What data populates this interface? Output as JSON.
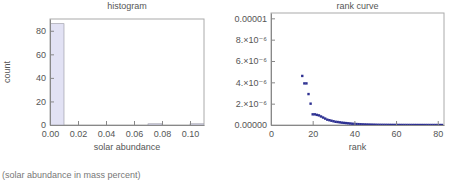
{
  "chart_data": [
    {
      "type": "histogram",
      "title": "histogram",
      "x_label": "solar abundance",
      "y_label": "count",
      "bins": [
        0,
        0.01,
        0.02,
        0.03,
        0.04,
        0.05,
        0.06,
        0.07,
        0.08,
        0.09,
        0.1,
        0.11
      ],
      "counts": [
        86,
        0,
        0,
        0,
        0,
        0,
        0,
        1,
        0,
        0,
        1
      ],
      "color": "#e2e2f4",
      "xlim": [
        0,
        0.11
      ],
      "ylim": [
        0,
        90
      ],
      "xticks": [
        {
          "value": 0,
          "label": "0.00"
        },
        {
          "value": 0.02,
          "label": "0.02"
        },
        {
          "value": 0.04,
          "label": "0.04"
        },
        {
          "value": 0.06,
          "label": "0.06"
        },
        {
          "value": 0.08,
          "label": "0.08"
        },
        {
          "value": 0.1,
          "label": "0.10"
        }
      ],
      "yticks": [
        0,
        20,
        40,
        60,
        80
      ]
    },
    {
      "type": "scatter",
      "title": "rank curve",
      "x_label": "rank",
      "x": [
        15,
        16,
        17,
        18,
        19,
        20,
        21,
        22,
        23,
        24,
        25,
        26,
        27,
        28,
        29,
        30,
        31,
        32,
        33,
        34,
        35,
        36,
        37,
        38,
        39,
        40,
        41,
        42,
        43,
        44,
        45,
        46,
        47,
        48,
        49,
        50,
        51,
        52,
        53,
        54,
        55,
        56,
        57,
        58,
        59,
        60,
        61,
        62,
        63,
        64,
        65,
        66,
        67,
        68,
        69,
        70,
        71,
        72,
        73,
        74,
        75,
        76,
        77,
        78,
        79,
        80,
        81,
        82
      ],
      "values": [
        4.6e-06,
        3.9e-06,
        3.9e-06,
        2.9e-06,
        2e-06,
        1e-06,
        1e-06,
        9.5e-07,
        9e-07,
        8e-07,
        7e-07,
        6e-07,
        5e-07,
        4.5e-07,
        4e-07,
        3.5e-07,
        3e-07,
        2.8e-07,
        2.5e-07,
        2.2e-07,
        2e-07,
        1.8e-07,
        1.6e-07,
        1.4e-07,
        1.2e-07,
        1e-07,
        9e-08,
        8e-08,
        7e-08,
        6e-08,
        5e-08,
        4.5e-08,
        4e-08,
        3.5e-08,
        3e-08,
        2.5e-08,
        2e-08,
        1.8e-08,
        1.6e-08,
        1.5e-08,
        1.4e-08,
        1.2e-08,
        1e-08,
        9e-09,
        8e-09,
        7e-09,
        6e-09,
        5e-09,
        4.5e-09,
        4e-09,
        3.5e-09,
        3e-09,
        2.5e-09,
        2e-09,
        1.8e-09,
        1.5e-09,
        1.2e-09,
        1e-09,
        8e-10,
        6e-10,
        5e-10,
        4e-10,
        3e-10,
        2e-10,
        1.5e-10,
        1e-10,
        5e-11,
        2e-11
      ],
      "color": "#2e3192",
      "marker": "square",
      "xlim": [
        0,
        83
      ],
      "ylim": [
        0,
        1.05e-05
      ],
      "xticks": [
        0,
        20,
        40,
        60,
        80
      ],
      "yticks": [
        {
          "value": 0,
          "label": "0.00000"
        },
        {
          "value": 2e-06,
          "label": "2.×10⁻⁶"
        },
        {
          "value": 4e-06,
          "label": "4.×10⁻⁶"
        },
        {
          "value": 6e-06,
          "label": "6.×10⁻⁶"
        },
        {
          "value": 8e-06,
          "label": "8.×10⁻⁶"
        },
        {
          "value": 1e-05,
          "label": "0.00001"
        }
      ]
    }
  ],
  "caption": "(solar abundance in mass percent)"
}
